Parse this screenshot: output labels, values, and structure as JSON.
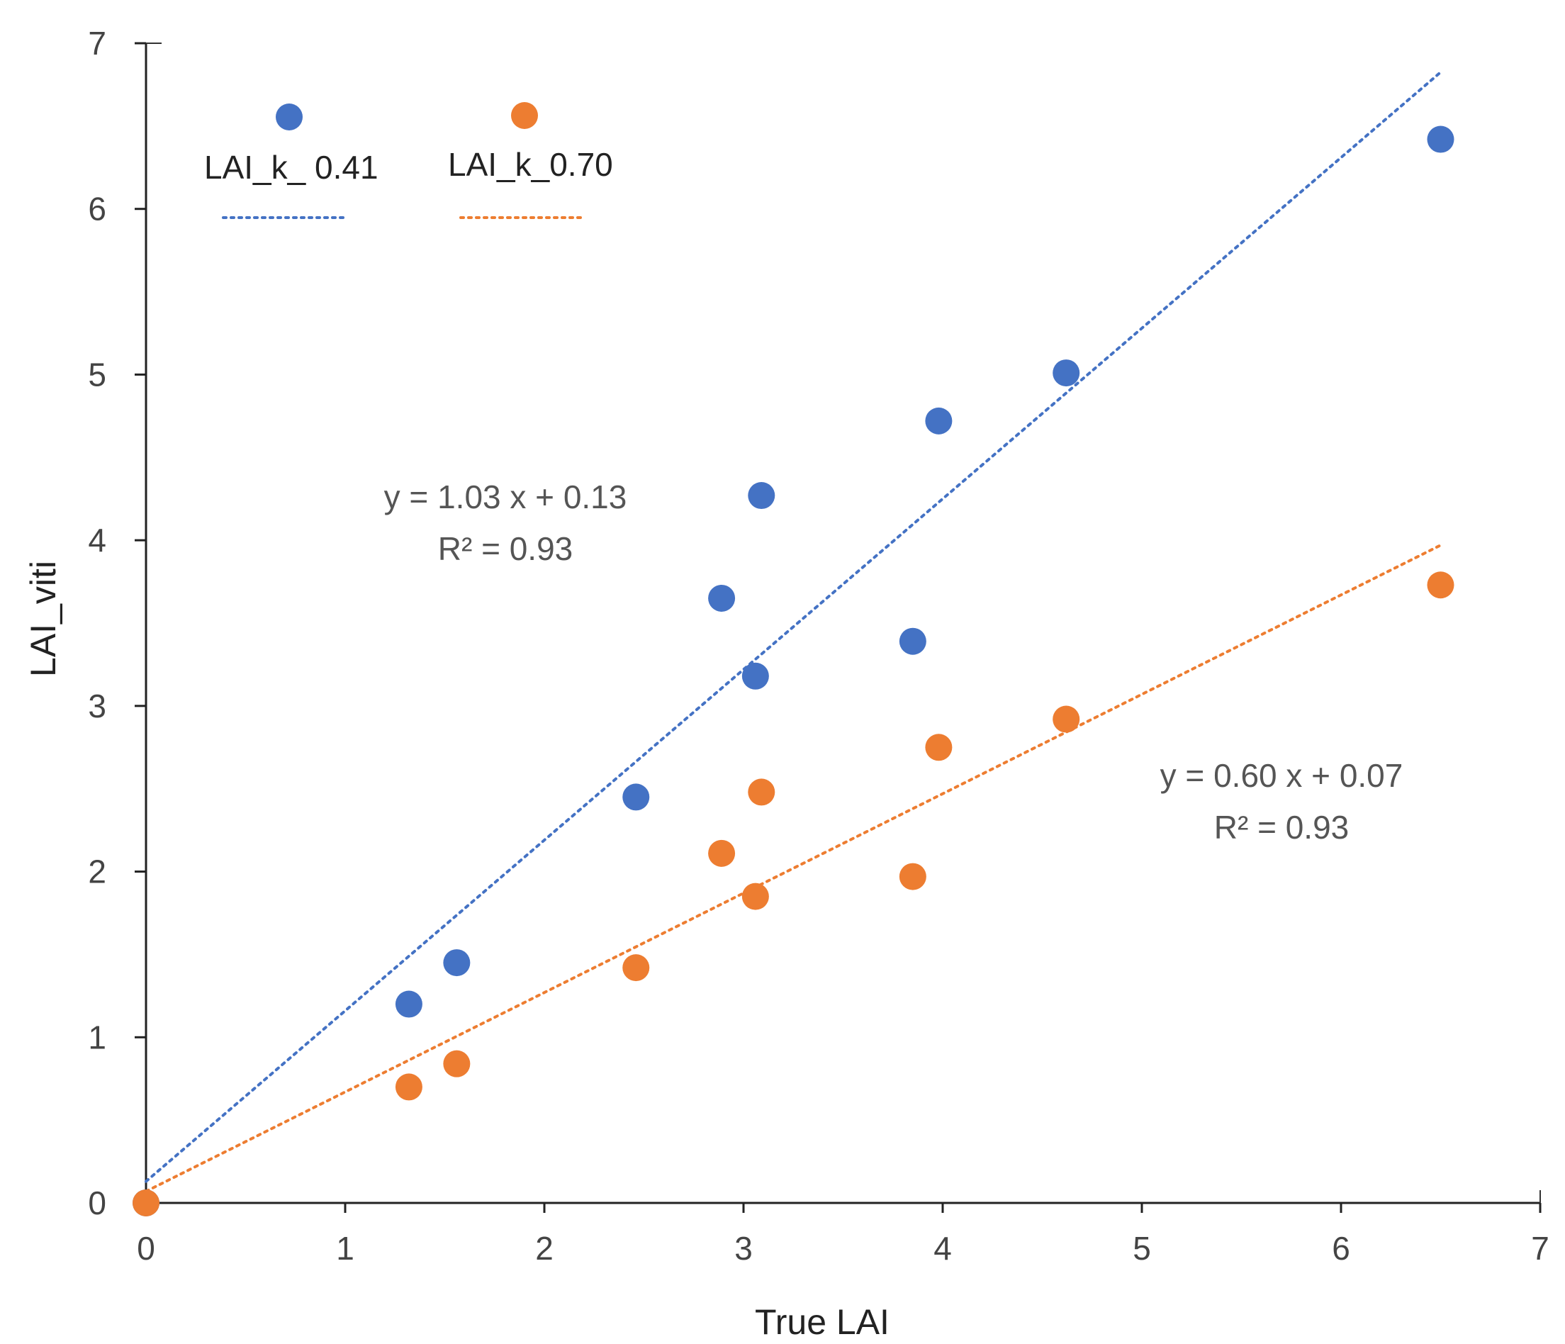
{
  "chart_data": {
    "type": "scatter",
    "title": "",
    "xlabel": "True LAI",
    "ylabel": "LAI_viti",
    "xlim": [
      0,
      7
    ],
    "ylim": [
      0,
      7
    ],
    "xticks": [
      "0",
      "1",
      "2",
      "3",
      "4",
      "5",
      "6",
      "7"
    ],
    "yticks": [
      "0",
      "1",
      "2",
      "3",
      "4",
      "5",
      "6",
      "7"
    ],
    "grid": false,
    "legend_position": "top-left",
    "series": [
      {
        "name": "LAI_k_ 0.41",
        "color": "#4472C4",
        "x": [
          0,
          1.32,
          1.56,
          2.46,
          2.89,
          3.06,
          3.09,
          3.85,
          3.98,
          4.62,
          6.5
        ],
        "y": [
          0,
          1.2,
          1.45,
          2.45,
          3.65,
          3.18,
          4.27,
          3.39,
          4.72,
          5.01,
          6.42
        ],
        "trendline": {
          "slope": 1.03,
          "intercept": 0.13,
          "x_range": [
            0,
            6.5
          ]
        },
        "equation": "y = 1.03 x + 0.13",
        "r2": "R² = 0.93"
      },
      {
        "name": "LAI_k_0.70",
        "color": "#ED7D31",
        "x": [
          0,
          1.32,
          1.56,
          2.46,
          2.89,
          3.06,
          3.09,
          3.85,
          3.98,
          4.62,
          6.5
        ],
        "y": [
          0,
          0.7,
          0.84,
          1.42,
          2.11,
          1.85,
          2.48,
          1.97,
          2.75,
          2.92,
          3.73
        ],
        "trendline": {
          "slope": 0.6,
          "intercept": 0.07,
          "x_range": [
            0,
            6.5
          ]
        },
        "equation": "y = 0.60 x + 0.07",
        "r2": "R² = 0.93"
      }
    ]
  }
}
